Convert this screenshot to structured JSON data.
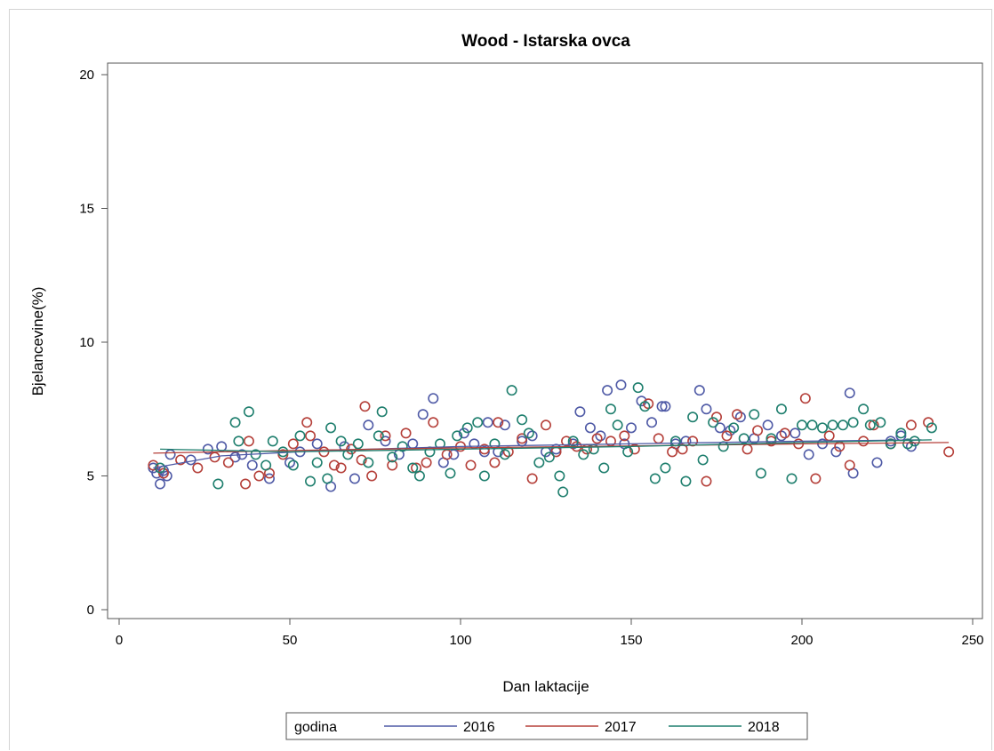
{
  "chart_data": {
    "type": "scatter",
    "title": "Wood - Istarska ovca",
    "xlabel": "Dan laktacije",
    "ylabel": "Bjelancevine(%)",
    "xlim": [
      0,
      250
    ],
    "ylim": [
      0,
      20
    ],
    "x_ticks": [
      "0",
      "50",
      "100",
      "150",
      "200",
      "250"
    ],
    "y_ticks": [
      "0",
      "5",
      "10",
      "15",
      "20"
    ],
    "grid": false,
    "legend": {
      "title": "godina",
      "placement": "bottom"
    },
    "series": [
      {
        "name": "2016",
        "color": "#4f5aa6",
        "points": [
          [
            10,
            5.3
          ],
          [
            11,
            5.1
          ],
          [
            12,
            4.7
          ],
          [
            13,
            5.2
          ],
          [
            14,
            5.0
          ],
          [
            15,
            5.8
          ],
          [
            21,
            5.6
          ],
          [
            26,
            6.0
          ],
          [
            30,
            6.1
          ],
          [
            34,
            5.7
          ],
          [
            36,
            5.8
          ],
          [
            39,
            5.4
          ],
          [
            44,
            4.9
          ],
          [
            50,
            5.5
          ],
          [
            53,
            5.9
          ],
          [
            58,
            6.2
          ],
          [
            62,
            4.6
          ],
          [
            66,
            6.1
          ],
          [
            69,
            4.9
          ],
          [
            73,
            6.9
          ],
          [
            78,
            6.3
          ],
          [
            82,
            5.8
          ],
          [
            86,
            6.2
          ],
          [
            89,
            7.3
          ],
          [
            92,
            7.9
          ],
          [
            95,
            5.5
          ],
          [
            98,
            5.8
          ],
          [
            101,
            6.6
          ],
          [
            104,
            6.2
          ],
          [
            107,
            5.9
          ],
          [
            108,
            7.0
          ],
          [
            111,
            5.9
          ],
          [
            113,
            6.9
          ],
          [
            118,
            6.3
          ],
          [
            121,
            6.5
          ],
          [
            125,
            5.9
          ],
          [
            128,
            6.0
          ],
          [
            133,
            6.2
          ],
          [
            135,
            7.4
          ],
          [
            138,
            6.8
          ],
          [
            141,
            6.5
          ],
          [
            143,
            8.2
          ],
          [
            147,
            8.4
          ],
          [
            148,
            6.2
          ],
          [
            150,
            6.8
          ],
          [
            153,
            7.8
          ],
          [
            156,
            7.0
          ],
          [
            159,
            7.6
          ],
          [
            160,
            7.6
          ],
          [
            163,
            6.2
          ],
          [
            166,
            6.3
          ],
          [
            170,
            8.2
          ],
          [
            172,
            7.5
          ],
          [
            176,
            6.8
          ],
          [
            179,
            6.7
          ],
          [
            182,
            7.2
          ],
          [
            186,
            6.4
          ],
          [
            190,
            6.9
          ],
          [
            194,
            6.5
          ],
          [
            198,
            6.6
          ],
          [
            202,
            5.8
          ],
          [
            206,
            6.2
          ],
          [
            210,
            5.9
          ],
          [
            214,
            8.1
          ],
          [
            215,
            5.1
          ],
          [
            222,
            5.5
          ],
          [
            226,
            6.3
          ],
          [
            229,
            6.5
          ],
          [
            232,
            6.1
          ]
        ],
        "fit": [
          [
            10,
            5.3
          ],
          [
            30,
            5.75
          ],
          [
            60,
            5.95
          ],
          [
            100,
            6.1
          ],
          [
            150,
            6.2
          ],
          [
            200,
            6.3
          ],
          [
            235,
            6.35
          ]
        ]
      },
      {
        "name": "2017",
        "color": "#b5403a",
        "points": [
          [
            10,
            5.4
          ],
          [
            13,
            5.1
          ],
          [
            18,
            5.6
          ],
          [
            23,
            5.3
          ],
          [
            28,
            5.7
          ],
          [
            32,
            5.5
          ],
          [
            37,
            4.7
          ],
          [
            38,
            6.3
          ],
          [
            41,
            5.0
          ],
          [
            44,
            5.1
          ],
          [
            48,
            5.8
          ],
          [
            51,
            6.2
          ],
          [
            55,
            7.0
          ],
          [
            56,
            6.5
          ],
          [
            60,
            5.9
          ],
          [
            63,
            5.4
          ],
          [
            65,
            5.3
          ],
          [
            68,
            6.0
          ],
          [
            71,
            5.6
          ],
          [
            72,
            7.6
          ],
          [
            74,
            5.0
          ],
          [
            78,
            6.5
          ],
          [
            80,
            5.4
          ],
          [
            84,
            6.6
          ],
          [
            87,
            5.3
          ],
          [
            90,
            5.5
          ],
          [
            92,
            7.0
          ],
          [
            96,
            5.8
          ],
          [
            100,
            6.1
          ],
          [
            103,
            5.4
          ],
          [
            107,
            6.0
          ],
          [
            110,
            5.5
          ],
          [
            111,
            7.0
          ],
          [
            114,
            5.9
          ],
          [
            118,
            6.4
          ],
          [
            121,
            4.9
          ],
          [
            125,
            6.9
          ],
          [
            128,
            5.9
          ],
          [
            131,
            6.3
          ],
          [
            134,
            6.1
          ],
          [
            137,
            6.0
          ],
          [
            140,
            6.4
          ],
          [
            144,
            6.3
          ],
          [
            148,
            6.5
          ],
          [
            151,
            6.0
          ],
          [
            155,
            7.7
          ],
          [
            158,
            6.4
          ],
          [
            162,
            5.9
          ],
          [
            165,
            6.0
          ],
          [
            168,
            6.3
          ],
          [
            172,
            4.8
          ],
          [
            175,
            7.2
          ],
          [
            178,
            6.5
          ],
          [
            181,
            7.3
          ],
          [
            184,
            6.0
          ],
          [
            187,
            6.7
          ],
          [
            191,
            6.3
          ],
          [
            195,
            6.6
          ],
          [
            199,
            6.2
          ],
          [
            201,
            7.9
          ],
          [
            204,
            4.9
          ],
          [
            208,
            6.5
          ],
          [
            211,
            6.1
          ],
          [
            214,
            5.4
          ],
          [
            218,
            6.3
          ],
          [
            221,
            6.9
          ],
          [
            226,
            6.2
          ],
          [
            232,
            6.9
          ],
          [
            237,
            7.0
          ],
          [
            243,
            5.9
          ]
        ],
        "fit": [
          [
            10,
            5.85
          ],
          [
            50,
            5.95
          ],
          [
            100,
            6.05
          ],
          [
            150,
            6.12
          ],
          [
            200,
            6.2
          ],
          [
            243,
            6.25
          ]
        ]
      },
      {
        "name": "2018",
        "color": "#1f7f6e",
        "points": [
          [
            12,
            5.3
          ],
          [
            29,
            4.7
          ],
          [
            34,
            7.0
          ],
          [
            35,
            6.3
          ],
          [
            38,
            7.4
          ],
          [
            40,
            5.8
          ],
          [
            43,
            5.4
          ],
          [
            45,
            6.3
          ],
          [
            48,
            5.9
          ],
          [
            51,
            5.4
          ],
          [
            53,
            6.5
          ],
          [
            56,
            4.8
          ],
          [
            58,
            5.5
          ],
          [
            61,
            4.9
          ],
          [
            62,
            6.8
          ],
          [
            65,
            6.3
          ],
          [
            67,
            5.8
          ],
          [
            70,
            6.2
          ],
          [
            73,
            5.5
          ],
          [
            76,
            6.5
          ],
          [
            77,
            7.4
          ],
          [
            80,
            5.7
          ],
          [
            83,
            6.1
          ],
          [
            86,
            5.3
          ],
          [
            88,
            5.0
          ],
          [
            91,
            5.9
          ],
          [
            94,
            6.2
          ],
          [
            97,
            5.1
          ],
          [
            99,
            6.5
          ],
          [
            102,
            6.8
          ],
          [
            105,
            7.0
          ],
          [
            107,
            5.0
          ],
          [
            110,
            6.2
          ],
          [
            113,
            5.8
          ],
          [
            115,
            8.2
          ],
          [
            118,
            7.1
          ],
          [
            120,
            6.6
          ],
          [
            123,
            5.5
          ],
          [
            126,
            5.7
          ],
          [
            129,
            5.0
          ],
          [
            130,
            4.4
          ],
          [
            133,
            6.3
          ],
          [
            136,
            5.8
          ],
          [
            139,
            6.0
          ],
          [
            142,
            5.3
          ],
          [
            144,
            7.5
          ],
          [
            146,
            6.9
          ],
          [
            149,
            5.9
          ],
          [
            152,
            8.3
          ],
          [
            154,
            7.6
          ],
          [
            157,
            4.9
          ],
          [
            160,
            5.3
          ],
          [
            163,
            6.3
          ],
          [
            166,
            4.8
          ],
          [
            168,
            7.2
          ],
          [
            171,
            5.6
          ],
          [
            174,
            7.0
          ],
          [
            177,
            6.1
          ],
          [
            180,
            6.8
          ],
          [
            183,
            6.4
          ],
          [
            186,
            7.3
          ],
          [
            188,
            5.1
          ],
          [
            191,
            6.4
          ],
          [
            194,
            7.5
          ],
          [
            197,
            4.9
          ],
          [
            200,
            6.9
          ],
          [
            203,
            6.9
          ],
          [
            206,
            6.8
          ],
          [
            209,
            6.9
          ],
          [
            212,
            6.9
          ],
          [
            215,
            7.0
          ],
          [
            218,
            7.5
          ],
          [
            220,
            6.9
          ],
          [
            223,
            7.0
          ],
          [
            226,
            6.2
          ],
          [
            229,
            6.6
          ],
          [
            231,
            6.2
          ],
          [
            233,
            6.3
          ],
          [
            238,
            6.8
          ]
        ],
        "fit": [
          [
            12,
            6.0
          ],
          [
            50,
            5.9
          ],
          [
            100,
            6.0
          ],
          [
            150,
            6.1
          ],
          [
            200,
            6.25
          ],
          [
            238,
            6.35
          ]
        ]
      }
    ]
  }
}
